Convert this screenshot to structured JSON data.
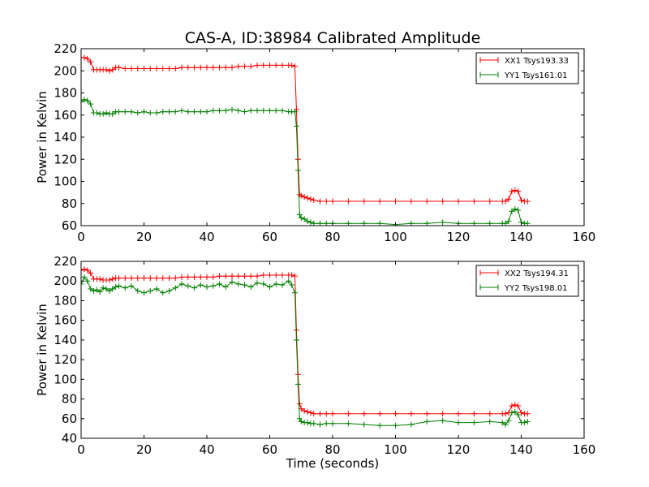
{
  "figure": {
    "title": "CAS-A, ID:38984 Calibrated Amplitude"
  },
  "chart_data": [
    {
      "type": "line",
      "title": "CAS-A, ID:38984 Calibrated Amplitude",
      "xlabel": "",
      "ylabel": "Power in Kelvin",
      "xlim": [
        0,
        160
      ],
      "ylim": [
        60,
        220
      ],
      "xticks": [
        0,
        20,
        40,
        60,
        80,
        100,
        120,
        140,
        160
      ],
      "yticks": [
        60,
        80,
        100,
        120,
        140,
        160,
        180,
        200,
        220
      ],
      "grid": false,
      "legend_position": "top-right",
      "marker": "+",
      "series": [
        {
          "name": "XX1 Tsys193.33",
          "color": "#ff0000",
          "x": [
            0,
            1,
            2,
            3,
            4,
            5,
            6,
            7,
            8,
            9,
            10,
            11,
            12,
            14,
            16,
            18,
            20,
            22,
            24,
            26,
            28,
            30,
            32,
            34,
            36,
            38,
            40,
            42,
            44,
            46,
            48,
            50,
            52,
            54,
            56,
            58,
            60,
            62,
            64,
            66,
            67,
            68,
            68.5,
            69,
            69.5,
            70,
            71,
            72,
            73,
            74,
            76,
            78,
            80,
            85,
            90,
            95,
            100,
            105,
            110,
            115,
            120,
            125,
            130,
            134,
            135,
            136,
            137,
            138,
            139,
            140,
            141,
            142
          ],
          "y": [
            212,
            212,
            211,
            208,
            201,
            201,
            201,
            201,
            201,
            200,
            201,
            203,
            203,
            202,
            202,
            202,
            202,
            202,
            202,
            202,
            202,
            202,
            203,
            203,
            203,
            203,
            203,
            203,
            203,
            203,
            203,
            204,
            204,
            204,
            205,
            205,
            205,
            205,
            205,
            205,
            205,
            204,
            165,
            120,
            88,
            87,
            86,
            85,
            84,
            83,
            82,
            82,
            82,
            82,
            82,
            82,
            82,
            82,
            82,
            82,
            82,
            82,
            82,
            82,
            82,
            84,
            91,
            92,
            91,
            83,
            82,
            82
          ]
        },
        {
          "name": "YY1 Tsys161.01",
          "color": "#007f00",
          "x": [
            0,
            1,
            2,
            3,
            4,
            5,
            6,
            7,
            8,
            9,
            10,
            11,
            12,
            14,
            16,
            18,
            20,
            22,
            24,
            26,
            28,
            30,
            32,
            34,
            36,
            38,
            40,
            42,
            44,
            46,
            48,
            50,
            52,
            54,
            56,
            58,
            60,
            62,
            64,
            66,
            67,
            68,
            68.5,
            69,
            69.5,
            70,
            71,
            72,
            73,
            74,
            76,
            78,
            80,
            85,
            90,
            95,
            100,
            105,
            110,
            115,
            120,
            125,
            130,
            134,
            135,
            136,
            137,
            138,
            139,
            140,
            141,
            142
          ],
          "y": [
            172,
            174,
            173,
            170,
            162,
            162,
            161,
            161,
            162,
            161,
            161,
            163,
            163,
            163,
            163,
            162,
            163,
            162,
            162,
            163,
            163,
            163,
            164,
            163,
            163,
            163,
            163,
            164,
            164,
            164,
            165,
            164,
            163,
            164,
            164,
            164,
            164,
            164,
            164,
            163,
            163,
            163,
            150,
            110,
            70,
            67,
            66,
            64,
            63,
            62,
            62,
            62,
            62,
            62,
            62,
            62,
            61,
            62,
            62,
            63,
            62,
            62,
            62,
            62,
            62,
            64,
            73,
            75,
            74,
            63,
            62,
            62
          ]
        }
      ]
    },
    {
      "type": "line",
      "title": "",
      "xlabel": "Time (seconds)",
      "ylabel": "Power in Kelvin",
      "xlim": [
        0,
        160
      ],
      "ylim": [
        40,
        220
      ],
      "xticks": [
        0,
        20,
        40,
        60,
        80,
        100,
        120,
        140,
        160
      ],
      "yticks": [
        40,
        60,
        80,
        100,
        120,
        140,
        160,
        180,
        200,
        220
      ],
      "grid": false,
      "legend_position": "top-right",
      "marker": "+",
      "series": [
        {
          "name": "XX2 Tsys194.31",
          "color": "#ff0000",
          "x": [
            0,
            1,
            2,
            3,
            4,
            5,
            6,
            7,
            8,
            9,
            10,
            11,
            12,
            14,
            16,
            18,
            20,
            22,
            24,
            26,
            28,
            30,
            32,
            34,
            36,
            38,
            40,
            42,
            44,
            46,
            48,
            50,
            52,
            54,
            56,
            58,
            60,
            62,
            64,
            66,
            67,
            68,
            68.5,
            69,
            69.5,
            70,
            71,
            72,
            73,
            74,
            76,
            78,
            80,
            85,
            90,
            95,
            100,
            105,
            110,
            115,
            120,
            125,
            130,
            134,
            135,
            136,
            137,
            138,
            139,
            140,
            141,
            142
          ],
          "y": [
            211,
            212,
            211,
            208,
            202,
            202,
            202,
            201,
            201,
            201,
            202,
            203,
            203,
            203,
            203,
            203,
            203,
            203,
            203,
            203,
            203,
            203,
            204,
            204,
            204,
            204,
            204,
            204,
            205,
            205,
            205,
            205,
            205,
            205,
            205,
            206,
            206,
            206,
            206,
            206,
            206,
            205,
            150,
            105,
            75,
            70,
            68,
            67,
            66,
            65,
            65,
            65,
            65,
            65,
            65,
            65,
            65,
            65,
            65,
            65,
            65,
            65,
            65,
            65,
            65,
            66,
            73,
            74,
            73,
            66,
            65,
            65
          ]
        },
        {
          "name": "YY2 Tsys198.01",
          "color": "#007f00",
          "x": [
            0,
            1,
            2,
            3,
            4,
            5,
            6,
            7,
            8,
            9,
            10,
            11,
            12,
            14,
            16,
            18,
            20,
            22,
            24,
            26,
            28,
            30,
            32,
            34,
            36,
            38,
            40,
            42,
            44,
            46,
            48,
            50,
            52,
            54,
            56,
            58,
            60,
            62,
            64,
            66,
            67,
            68,
            68.5,
            69,
            69.5,
            70,
            71,
            72,
            73,
            74,
            76,
            78,
            80,
            85,
            90,
            95,
            100,
            105,
            110,
            115,
            120,
            125,
            130,
            134,
            135,
            136,
            137,
            138,
            139,
            140,
            141,
            142
          ],
          "y": [
            197,
            204,
            200,
            192,
            190,
            191,
            189,
            193,
            192,
            190,
            192,
            194,
            195,
            193,
            195,
            190,
            188,
            190,
            192,
            188,
            190,
            193,
            197,
            195,
            193,
            196,
            194,
            195,
            197,
            194,
            199,
            197,
            196,
            194,
            198,
            197,
            194,
            197,
            196,
            200,
            196,
            188,
            140,
            95,
            60,
            57,
            56,
            56,
            55,
            55,
            54,
            55,
            55,
            55,
            54,
            53,
            53,
            54,
            57,
            58,
            56,
            56,
            57,
            56,
            54,
            58,
            66,
            67,
            64,
            56,
            56,
            57
          ]
        }
      ]
    }
  ]
}
